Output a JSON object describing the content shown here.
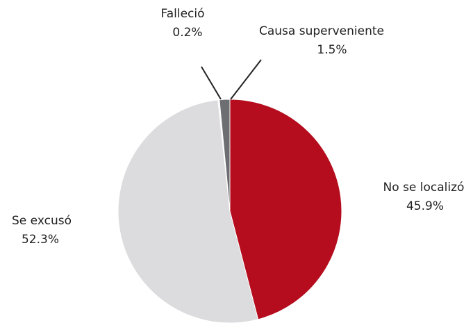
{
  "chart_data": {
    "type": "pie",
    "categories": [
      "No se localizó",
      "Se excusó",
      "Falleció",
      "Causa superveniente"
    ],
    "values": [
      45.9,
      52.3,
      0.2,
      1.5
    ],
    "value_labels": [
      "45.9%",
      "52.3%",
      "0.2%",
      "1.5%"
    ],
    "colors": [
      "#b50d1d",
      "#dcdcde",
      "#f4f4f4",
      "#6d6e71"
    ]
  }
}
